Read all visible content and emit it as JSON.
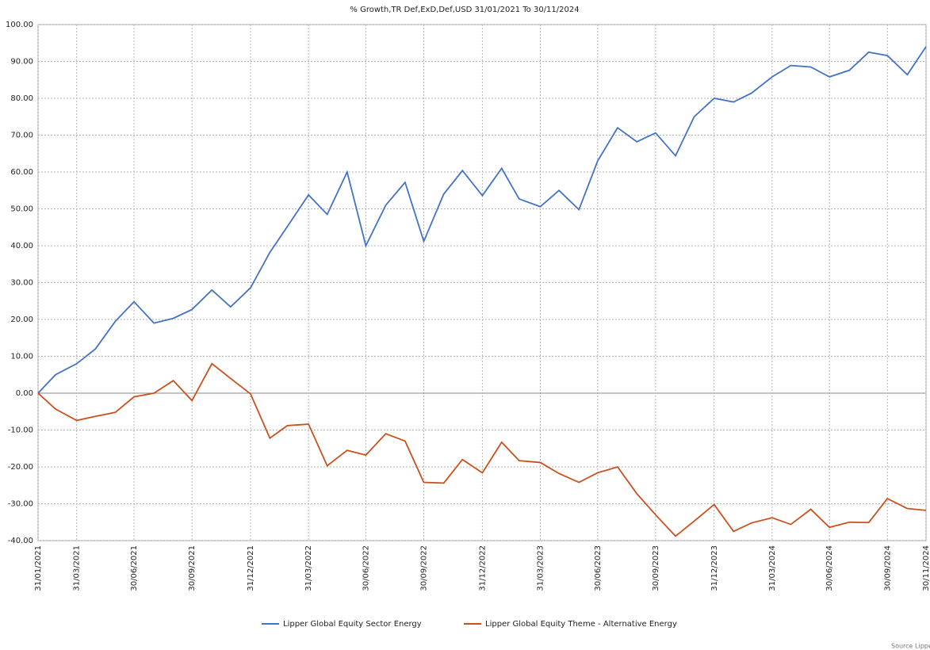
{
  "chart_data": {
    "type": "line",
    "title": "% Growth,TR Def,ExD,Def,USD 31/01/2021 To 30/11/2024",
    "x": [
      "31/01/2021",
      "28/02/2021",
      "31/03/2021",
      "30/04/2021",
      "31/05/2021",
      "30/06/2021",
      "31/07/2021",
      "31/08/2021",
      "30/09/2021",
      "31/10/2021",
      "30/11/2021",
      "31/12/2021",
      "31/01/2022",
      "28/02/2022",
      "31/03/2022",
      "30/04/2022",
      "31/05/2022",
      "30/06/2022",
      "31/07/2022",
      "31/08/2022",
      "30/09/2022",
      "31/10/2022",
      "30/11/2022",
      "31/12/2022",
      "31/01/2023",
      "28/02/2023",
      "31/03/2023",
      "30/04/2023",
      "31/05/2023",
      "30/06/2023",
      "31/07/2023",
      "31/08/2023",
      "30/09/2023",
      "31/10/2023",
      "30/11/2023",
      "31/12/2023",
      "31/01/2024",
      "29/02/2024",
      "31/03/2024",
      "30/04/2024",
      "31/05/2024",
      "30/06/2024",
      "31/07/2024",
      "31/08/2024",
      "30/09/2024",
      "31/10/2024",
      "30/11/2024"
    ],
    "series": [
      {
        "name": "Lipper Global Equity Sector Energy",
        "color": "#4472c4",
        "values": [
          0,
          5,
          8,
          12,
          19.5,
          24.8,
          19,
          20.3,
          22.7,
          28,
          23.4,
          28.6,
          38.2,
          45.2,
          53.8,
          48.5,
          60,
          40,
          51,
          57.2,
          41.2,
          54,
          60.4,
          53.6,
          61,
          52.7,
          50.6,
          55,
          49.8,
          63,
          72,
          68.2,
          70.6,
          64.4,
          75,
          80,
          79,
          81.4,
          85.8,
          88.9,
          88.5,
          85.8,
          87.6,
          92.5,
          91.6,
          86.4,
          94
        ]
      },
      {
        "name": "Lipper Global Equity Theme - Alternative Energy",
        "color": "#c9511f",
        "values": [
          0,
          -4.3,
          -7.4,
          -6.3,
          -5.2,
          -1,
          0,
          3.4,
          -2,
          8,
          4,
          -0.2,
          -12.2,
          -8.8,
          -8.4,
          -19.7,
          -15.5,
          -16.8,
          -11,
          -13,
          -24.2,
          -24.4,
          -18,
          -21.6,
          -13.3,
          -18.3,
          -18.8,
          -21.8,
          -24.2,
          -21.6,
          -20,
          -27.3,
          -33,
          -38.8,
          -34.7,
          -30.2,
          -37.5,
          -35.2,
          -33.8,
          -35.6,
          -31.5,
          -36.4,
          -35,
          -35.1,
          -28.6,
          -31.3,
          -31.8
        ]
      }
    ],
    "xlim": [
      "31/01/2021",
      "30/11/2024"
    ],
    "xticks": [
      "31/01/2021",
      "31/03/2021",
      "30/06/2021",
      "30/09/2021",
      "31/12/2021",
      "31/03/2022",
      "30/06/2022",
      "30/09/2022",
      "31/12/2022",
      "31/03/2023",
      "30/06/2023",
      "30/09/2023",
      "31/12/2023",
      "31/03/2024",
      "30/06/2024",
      "30/09/2024",
      "30/11/2024"
    ],
    "ylim": [
      -40,
      100
    ],
    "yticks": [
      {
        "value": -40,
        "label": "-40.00"
      },
      {
        "value": -30,
        "label": "-30.00"
      },
      {
        "value": -20,
        "label": "-20.00"
      },
      {
        "value": -10,
        "label": "-10.00"
      },
      {
        "value": 0,
        "label": "0.00"
      },
      {
        "value": 10,
        "label": "10.00"
      },
      {
        "value": 20,
        "label": "20.00"
      },
      {
        "value": 30,
        "label": "30.00"
      },
      {
        "value": 40,
        "label": "40.00"
      },
      {
        "value": 50,
        "label": "50.00"
      },
      {
        "value": 60,
        "label": "60.00"
      },
      {
        "value": 70,
        "label": "70.00"
      },
      {
        "value": 80,
        "label": "80.00"
      },
      {
        "value": 90,
        "label": "90.00"
      },
      {
        "value": 100,
        "label": "100.00"
      }
    ],
    "grid": true,
    "legend": "bottom",
    "source": "Source Lipper"
  }
}
